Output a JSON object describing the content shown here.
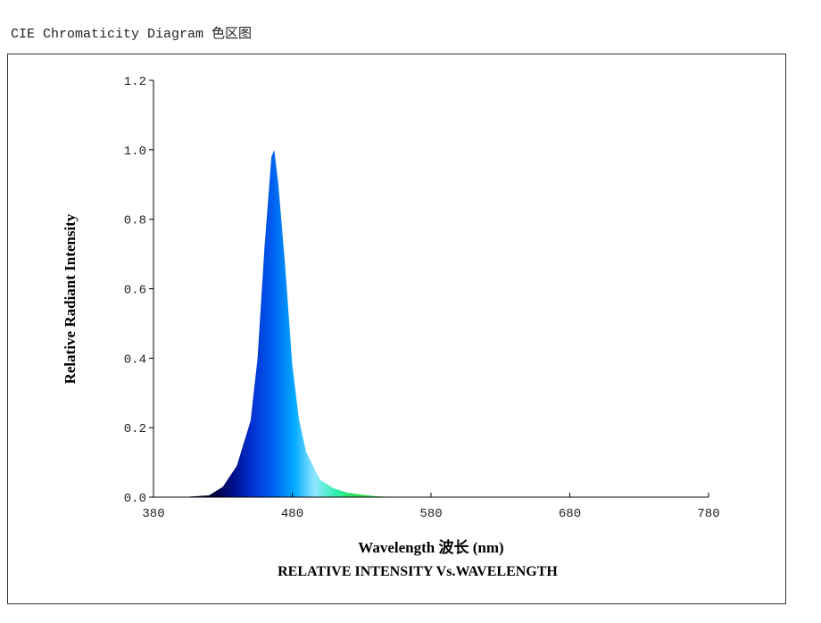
{
  "header": {
    "title": "CIE Chromaticity Diagram 色区图"
  },
  "chart_data": {
    "type": "area",
    "title": "RELATIVE INTENSITY Vs.WAVELENGTH",
    "x_label": "Wavelength 波长 (nm)",
    "y_label": "Relative Radiant Intensity",
    "x": [
      380,
      400,
      420,
      430,
      440,
      450,
      455,
      460,
      465,
      467,
      470,
      475,
      480,
      485,
      490,
      500,
      510,
      520,
      530,
      540,
      550,
      560,
      780
    ],
    "values": [
      0,
      0,
      0.005,
      0.03,
      0.09,
      0.22,
      0.4,
      0.72,
      0.98,
      1.0,
      0.9,
      0.66,
      0.38,
      0.22,
      0.13,
      0.05,
      0.025,
      0.013,
      0.007,
      0.003,
      0.001,
      0,
      0
    ],
    "colors": [
      "#00002a",
      "#000c80",
      "#0030d0",
      "#0060f0",
      "#00a8ff",
      "#90e8ff",
      "#30f0b0",
      "#30e050"
    ],
    "xlim": [
      380,
      780
    ],
    "ylim": [
      0,
      1.2
    ],
    "xticks": [
      380,
      480,
      580,
      680,
      780
    ],
    "yticks": [
      {
        "value": 0,
        "label": "0.0"
      },
      {
        "value": 0.2,
        "label": "0.2"
      },
      {
        "value": 0.4,
        "label": "0.4"
      },
      {
        "value": 0.6,
        "label": "0.6"
      },
      {
        "value": 0.8,
        "label": "0.8"
      },
      {
        "value": 1.0,
        "label": "1.0"
      },
      {
        "value": 1.2,
        "label": "1.2"
      }
    ]
  }
}
